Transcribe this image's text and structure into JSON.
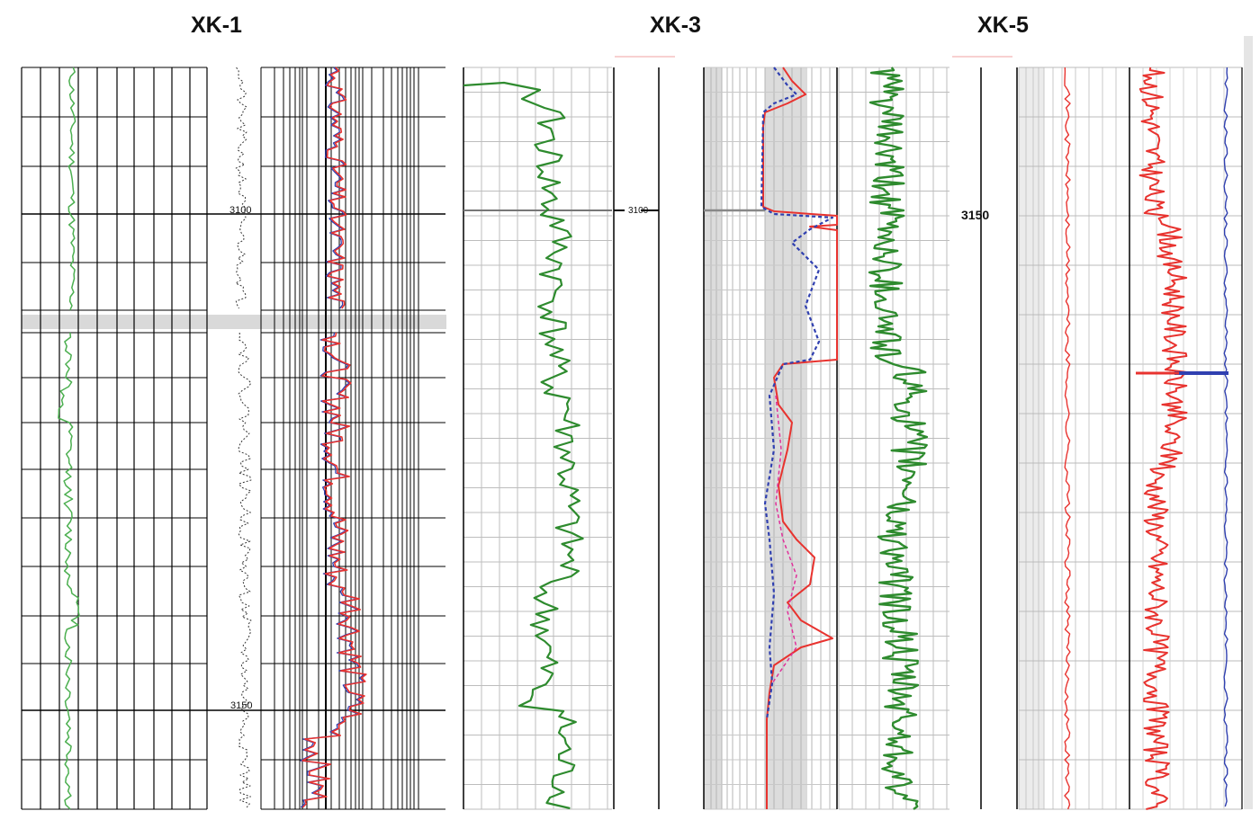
{
  "wells": [
    {
      "name": "XK-1"
    },
    {
      "name": "XK-3"
    },
    {
      "name": "XK-5"
    }
  ],
  "depth_labels": {
    "xk1_upper": "3100",
    "xk1_lower": "3150",
    "xk3": "3100",
    "xk5": "3150"
  },
  "colors": {
    "green_curve": "#2e8b2e",
    "light_green_curve": "#4caf50",
    "red_curve": "#e8332f",
    "blue_curve": "#3040b0",
    "pink_curve": "#e0309a",
    "grid": "#000000",
    "light_grid": "#bdbdbd",
    "shade": "#dcdcdc",
    "break_band": "#d9d9d9"
  }
}
